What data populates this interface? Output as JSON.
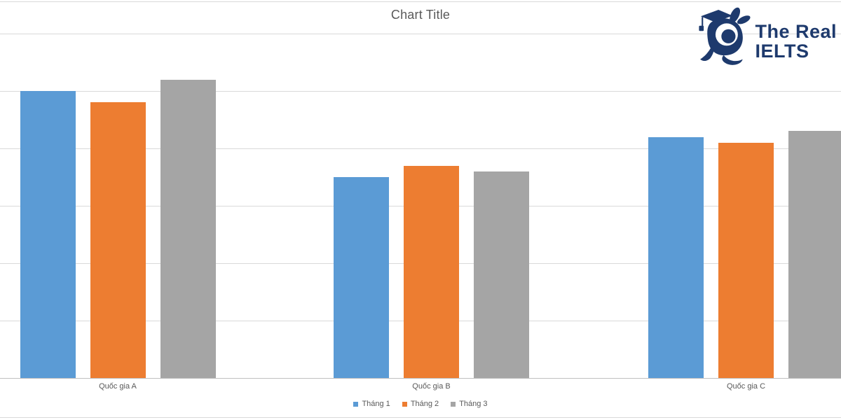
{
  "chart_title": "Chart Title",
  "logo": {
    "line1": "The Real",
    "line2": "IELTS",
    "color": "#1e3a6d",
    "icon": "rabbit-graduation-cap-icon"
  },
  "chart_data": {
    "type": "bar",
    "title": "Chart Title",
    "categories": [
      "Quốc gia A",
      "Quốc gia B",
      "Quốc gia C"
    ],
    "series": [
      {
        "name": "Tháng 1",
        "color": "#5b9bd5",
        "values": [
          50,
          35,
          42
        ]
      },
      {
        "name": "Tháng 2",
        "color": "#ed7d31",
        "values": [
          48,
          37,
          41
        ]
      },
      {
        "name": "Tháng 3",
        "color": "#a5a5a5",
        "values": [
          52,
          36,
          43
        ]
      }
    ],
    "ylim": [
      0,
      60
    ],
    "gridline_step": 10,
    "y_axis_labels_visible": false,
    "grid": true,
    "legend_position": "bottom"
  },
  "colors": {
    "gridline": "#d9d9d9",
    "axis": "#bfbfbf",
    "text": "#595959",
    "background": "#ffffff"
  }
}
